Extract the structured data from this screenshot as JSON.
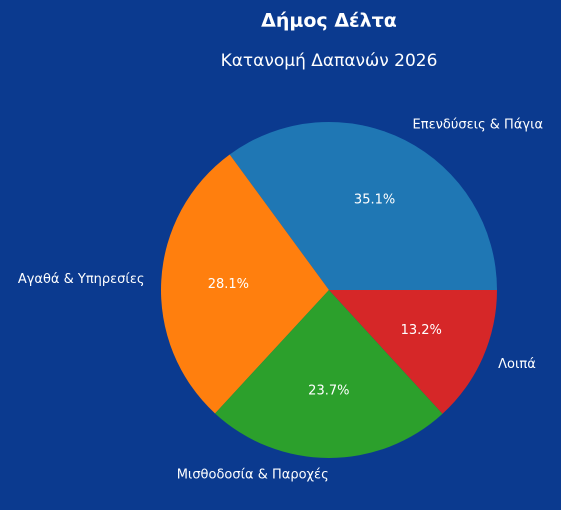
{
  "chart_data": {
    "type": "pie",
    "title": "Δήμος Δέλτα",
    "subtitle": "Κατανομή Δαπανών 2026",
    "categories": [
      "Επενδύσεις & Πάγια",
      "Αγαθά & Υπηρεσίες",
      "Μισθοδοσία & Παροχές",
      "Λοιπά"
    ],
    "values": [
      35.1,
      28.1,
      23.7,
      13.2
    ],
    "value_labels": [
      "35.1%",
      "28.1%",
      "23.7%",
      "13.2%"
    ],
    "colors": [
      "#1f77b4",
      "#ff7f0e",
      "#2ca02c",
      "#d62728"
    ]
  }
}
